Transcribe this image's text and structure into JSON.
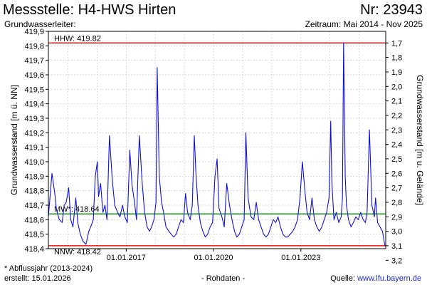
{
  "header": {
    "title": "Messstelle: H4-HWS Hirten",
    "nr": "Nr: 23943",
    "aquifer": "Grundwasserleiter:",
    "period": "Zeitraum: Mai 2014 - Nov 2025"
  },
  "footer": {
    "footnote": "* Abflussjahr (2013-2024)",
    "created": "erstellt:  15.01.2026",
    "raw": "- Rohdaten -",
    "source_label": "Quelle: ",
    "source_link": "www.lfu.bayern.de"
  },
  "colors": {
    "series": "#1010dd",
    "hhw": "#ee1111",
    "mw": "#119911",
    "nnw": "#ee1111",
    "grid": "#cccccc"
  },
  "chart_data": {
    "type": "line",
    "ylabel": "Grundwasserstand [m ü. NN]",
    "y2label": "Grundwasserstand [m u. Gelände]",
    "ylim": [
      418.4,
      419.9
    ],
    "y_ticks": [
      418.4,
      418.5,
      418.6,
      418.7,
      418.8,
      418.9,
      419.0,
      419.1,
      419.2,
      419.3,
      419.4,
      419.5,
      419.6,
      419.7,
      419.8,
      419.9
    ],
    "y_tick_labels": [
      "418,4",
      "418,5",
      "418,6",
      "418,7",
      "418,8",
      "418,9",
      "419,0",
      "419,1",
      "419,2",
      "419,3",
      "419,4",
      "419,5",
      "419,6",
      "419,7",
      "419,8",
      "419,9"
    ],
    "y2_ticks": [
      1.7,
      1.8,
      1.9,
      2.0,
      2.1,
      2.2,
      2.3,
      2.4,
      2.5,
      2.6,
      2.7,
      2.8,
      2.9,
      3.0,
      3.1,
      3.2
    ],
    "y2_tick_labels": [
      "1,7",
      "1,8",
      "1,9",
      "2,0",
      "2,1",
      "2,2",
      "2,3",
      "2,4",
      "2,5",
      "2,6",
      "2,7",
      "2,8",
      "2,9",
      "3,0",
      "3,1",
      "3,2"
    ],
    "y2_reference_level": 421.52,
    "xlim": [
      "2014-05-01",
      "2025-11-30"
    ],
    "x_ticks": [
      "2017-01-01",
      "2020-01-01",
      "2023-01-01"
    ],
    "x_tick_labels": [
      "01.01.2017",
      "01.01.2020",
      "01.01.2023"
    ],
    "reference_lines": [
      {
        "label": "HHW: 419.82",
        "value": 419.82,
        "color": "hhw"
      },
      {
        "label": "MW*: 418.64",
        "value": 418.64,
        "color": "mw"
      },
      {
        "label": "NNW: 418.42",
        "value": 418.42,
        "color": "nnw"
      }
    ],
    "grid": true,
    "series": [
      {
        "x": [
          "2014-05-01",
          "2014-06-15",
          "2014-07-20",
          "2014-08-10",
          "2014-09-15",
          "2014-10-20",
          "2014-11-15",
          "2014-12-10",
          "2015-01-10",
          "2015-02-05",
          "2015-03-05",
          "2015-04-10",
          "2015-05-05",
          "2015-06-05",
          "2015-07-10",
          "2015-08-15",
          "2015-09-20",
          "2015-10-20",
          "2015-11-15",
          "2015-12-10",
          "2016-01-05",
          "2016-01-20",
          "2016-02-15",
          "2016-03-15",
          "2016-04-10",
          "2016-05-05",
          "2016-06-05",
          "2016-07-10",
          "2016-08-10",
          "2016-09-15",
          "2016-10-15",
          "2016-11-15",
          "2016-12-15",
          "2017-01-15",
          "2017-02-15",
          "2017-03-15",
          "2017-04-15",
          "2017-05-10",
          "2017-06-15",
          "2017-07-20",
          "2017-08-20",
          "2017-09-20",
          "2017-10-20",
          "2017-11-15",
          "2017-12-15",
          "2018-01-10",
          "2018-01-25",
          "2018-02-20",
          "2018-03-20",
          "2018-04-15",
          "2018-05-15",
          "2018-06-20",
          "2018-07-20",
          "2018-08-20",
          "2018-09-20",
          "2018-10-20",
          "2018-11-20",
          "2018-12-20",
          "2019-01-15",
          "2019-02-10",
          "2019-03-15",
          "2019-04-10",
          "2019-05-05",
          "2019-05-25",
          "2019-06-20",
          "2019-07-20",
          "2019-08-20",
          "2019-09-20",
          "2019-10-20",
          "2019-11-20",
          "2019-12-20",
          "2020-01-20",
          "2020-02-15",
          "2020-03-10",
          "2020-04-15",
          "2020-05-15",
          "2020-06-15",
          "2020-07-20",
          "2020-08-20",
          "2020-09-20",
          "2020-10-20",
          "2020-11-20",
          "2020-12-20",
          "2021-01-20",
          "2021-02-10",
          "2021-03-10",
          "2021-04-15",
          "2021-05-20",
          "2021-06-20",
          "2021-07-20",
          "2021-08-20",
          "2021-09-20",
          "2021-10-20",
          "2021-11-20",
          "2021-12-20",
          "2022-01-20",
          "2022-02-20",
          "2022-03-20",
          "2022-04-20",
          "2022-05-20",
          "2022-06-20",
          "2022-07-20",
          "2022-08-20",
          "2022-09-20",
          "2022-10-20",
          "2022-11-20",
          "2022-12-20",
          "2023-01-20",
          "2023-02-20",
          "2023-03-20",
          "2023-04-20",
          "2023-05-20",
          "2023-06-20",
          "2023-07-20",
          "2023-08-20",
          "2023-09-20",
          "2023-10-20",
          "2023-11-20",
          "2023-12-20",
          "2024-01-10",
          "2024-01-25",
          "2024-02-20",
          "2024-03-20",
          "2024-04-20",
          "2024-05-20",
          "2024-06-05",
          "2024-06-20",
          "2024-07-10",
          "2024-07-25",
          "2024-08-20",
          "2024-09-20",
          "2024-10-20",
          "2024-11-20",
          "2024-12-20",
          "2025-01-20",
          "2025-02-20",
          "2025-03-20",
          "2025-04-10",
          "2025-05-10",
          "2025-06-10",
          "2025-07-10",
          "2025-07-25",
          "2025-08-20",
          "2025-09-20",
          "2025-10-20",
          "2025-11-20"
        ],
        "y": [
          418.62,
          418.92,
          418.78,
          418.67,
          418.6,
          418.58,
          418.7,
          418.72,
          418.82,
          418.6,
          418.55,
          418.75,
          418.58,
          418.5,
          418.45,
          418.43,
          418.52,
          418.56,
          418.6,
          418.9,
          419.0,
          418.76,
          418.85,
          418.65,
          418.7,
          418.6,
          419.18,
          418.88,
          418.7,
          418.65,
          418.62,
          418.7,
          418.62,
          418.58,
          419.08,
          418.84,
          418.72,
          418.6,
          419.18,
          418.86,
          418.65,
          418.55,
          418.52,
          418.55,
          418.6,
          418.72,
          419.65,
          418.9,
          418.72,
          418.65,
          418.55,
          418.52,
          418.5,
          418.48,
          418.5,
          418.55,
          418.6,
          418.58,
          418.78,
          418.65,
          418.6,
          418.7,
          419.18,
          418.92,
          418.7,
          418.58,
          418.52,
          418.48,
          418.5,
          418.55,
          418.58,
          418.9,
          419.02,
          418.68,
          418.62,
          418.55,
          418.85,
          418.7,
          418.6,
          418.52,
          418.48,
          418.5,
          418.55,
          418.6,
          419.2,
          418.75,
          418.62,
          418.6,
          418.72,
          418.6,
          418.55,
          418.5,
          418.48,
          418.5,
          418.55,
          418.6,
          418.58,
          418.62,
          418.55,
          418.5,
          418.48,
          418.48,
          418.5,
          418.52,
          418.55,
          418.6,
          418.75,
          419.0,
          418.8,
          418.65,
          418.6,
          418.75,
          418.6,
          418.55,
          418.52,
          418.55,
          418.6,
          418.65,
          418.75,
          419.28,
          418.85,
          418.6,
          418.65,
          418.58,
          418.62,
          418.75,
          419.82,
          418.9,
          418.7,
          418.6,
          418.55,
          418.58,
          418.62,
          418.6,
          418.65,
          418.6,
          418.58,
          418.65,
          419.22,
          418.7,
          418.62,
          418.75,
          418.58,
          418.55,
          418.52,
          418.42
        ]
      }
    ]
  }
}
